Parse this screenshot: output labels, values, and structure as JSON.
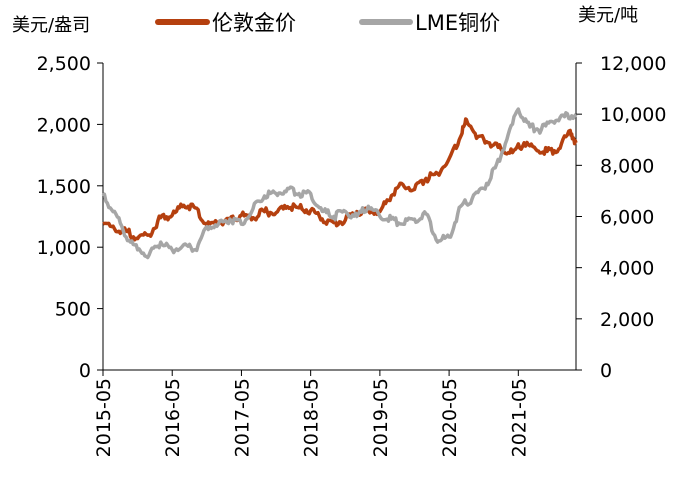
{
  "chart_data": {
    "type": "line",
    "left_unit": "美元/盎司",
    "right_unit": "美元/吨",
    "legend_position": "top",
    "y_left": {
      "min": 0,
      "max": 2500,
      "ticks": [
        "0",
        "500",
        "1,000",
        "1,500",
        "2,000",
        "2,500"
      ],
      "tick_values": [
        0,
        500,
        1000,
        1500,
        2000,
        2500
      ]
    },
    "y_right": {
      "min": 0,
      "max": 12000,
      "ticks": [
        "0",
        "2,000",
        "4,000",
        "6,000",
        "8,000",
        "10,000",
        "12,000"
      ],
      "tick_values": [
        0,
        2000,
        4000,
        6000,
        8000,
        10000,
        12000
      ]
    },
    "x_ticks": [
      "2015-05",
      "2016-05",
      "2017-05",
      "2018-05",
      "2019-05",
      "2020-05",
      "2021-05"
    ],
    "x_range": [
      "2015-05",
      "2022-03"
    ],
    "grid": false,
    "series": [
      {
        "name": "伦敦金价",
        "axis": "left",
        "color": "#B5400F",
        "x": [
          "2015-05",
          "2015-07",
          "2015-09",
          "2015-11",
          "2016-01",
          "2016-03",
          "2016-05",
          "2016-07",
          "2016-09",
          "2016-11",
          "2017-01",
          "2017-03",
          "2017-05",
          "2017-07",
          "2017-09",
          "2017-11",
          "2018-01",
          "2018-03",
          "2018-05",
          "2018-07",
          "2018-09",
          "2018-11",
          "2019-01",
          "2019-03",
          "2019-05",
          "2019-07",
          "2019-09",
          "2019-11",
          "2020-01",
          "2020-03",
          "2020-05",
          "2020-07",
          "2020-08",
          "2020-10",
          "2020-12",
          "2021-02",
          "2021-04",
          "2021-06",
          "2021-08",
          "2021-10",
          "2021-12",
          "2022-02",
          "2022-03"
        ],
        "values": [
          1190,
          1150,
          1130,
          1070,
          1100,
          1240,
          1260,
          1340,
          1320,
          1180,
          1200,
          1230,
          1260,
          1240,
          1290,
          1280,
          1330,
          1320,
          1300,
          1230,
          1200,
          1220,
          1290,
          1300,
          1290,
          1420,
          1510,
          1470,
          1560,
          1600,
          1720,
          1900,
          2040,
          1900,
          1850,
          1800,
          1770,
          1850,
          1800,
          1780,
          1800,
          1950,
          1850
        ]
      },
      {
        "name": "LME铜价",
        "axis": "right",
        "color": "#A6A6A6",
        "x": [
          "2015-05",
          "2015-07",
          "2015-09",
          "2015-11",
          "2016-01",
          "2016-03",
          "2016-05",
          "2016-07",
          "2016-09",
          "2016-11",
          "2017-01",
          "2017-03",
          "2017-05",
          "2017-07",
          "2017-09",
          "2017-11",
          "2018-01",
          "2018-03",
          "2018-05",
          "2018-07",
          "2018-09",
          "2018-11",
          "2019-01",
          "2019-03",
          "2019-05",
          "2019-07",
          "2019-09",
          "2019-11",
          "2020-01",
          "2020-03",
          "2020-05",
          "2020-07",
          "2020-09",
          "2020-11",
          "2021-01",
          "2021-03",
          "2021-05",
          "2021-07",
          "2021-09",
          "2021-11",
          "2022-01",
          "2022-03"
        ],
        "values": [
          6800,
          6200,
          5200,
          4700,
          4500,
          5000,
          4700,
          4900,
          4700,
          5600,
          5700,
          5900,
          5700,
          6300,
          6800,
          6900,
          7100,
          6900,
          6900,
          6200,
          6000,
          6200,
          6000,
          6400,
          6000,
          5900,
          5700,
          5900,
          6100,
          5000,
          5200,
          6400,
          6700,
          7100,
          7900,
          9000,
          10200,
          9500,
          9400,
          9700,
          9900,
          10000
        ]
      }
    ]
  }
}
